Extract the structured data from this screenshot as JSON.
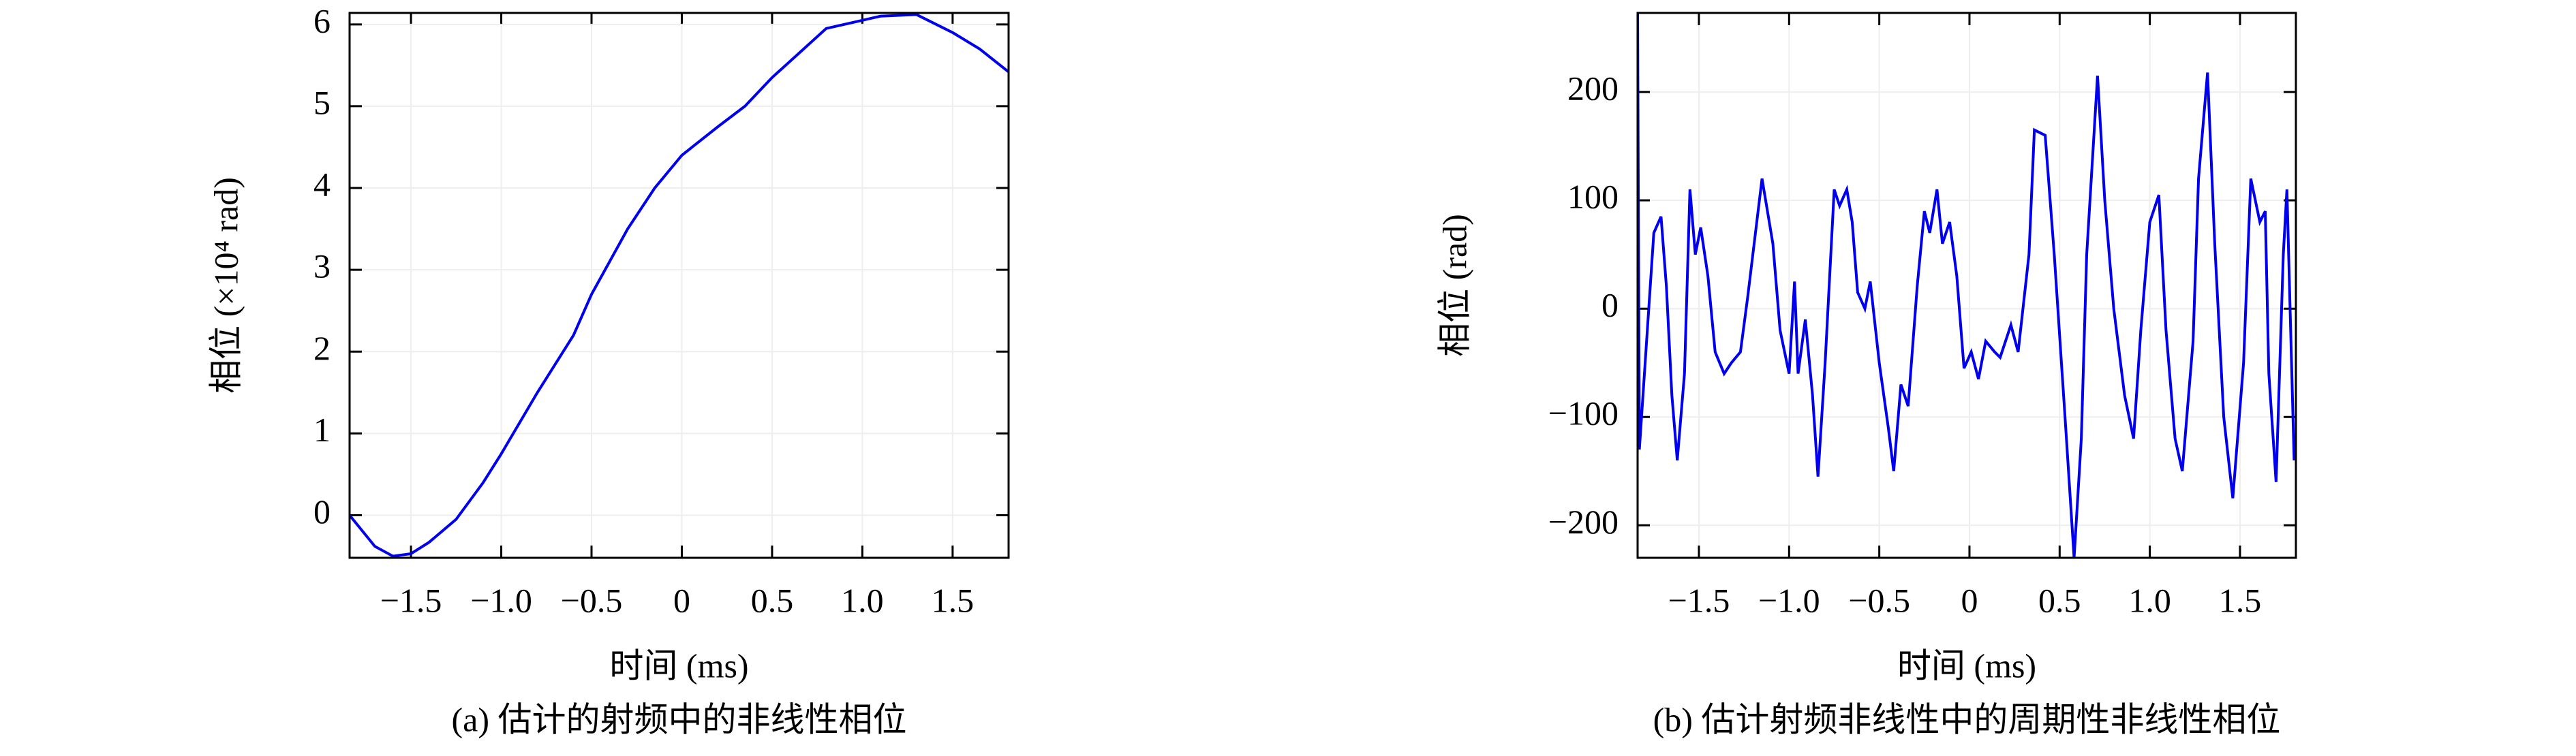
{
  "chart_data": [
    {
      "type": "line",
      "caption": "(a) 估计的射频中的非线性相位",
      "xlabel": "时间 (ms)",
      "ylabel": "相位 (×10⁴ rad)",
      "xlim": [
        -1.84,
        1.81
      ],
      "ylim": [
        -0.52,
        6.14
      ],
      "xticks": [
        {
          "value": -1.5,
          "label": "−1.5"
        },
        {
          "value": -1,
          "label": "−1.0"
        },
        {
          "value": -0.5,
          "label": "−0.5"
        },
        0,
        0.5,
        {
          "value": 1,
          "label": "1.0"
        },
        1.5
      ],
      "yticks": [
        0,
        1,
        2,
        3,
        4,
        5,
        6
      ],
      "grid": true,
      "series": [
        {
          "color": "#0000ee",
          "x": [
            -1.84,
            -1.7,
            -1.6,
            -1.5,
            -1.4,
            -1.25,
            -1.1,
            -1.0,
            -0.8,
            -0.6,
            -0.5,
            -0.3,
            -0.15,
            0,
            0.2,
            0.35,
            0.5,
            0.65,
            0.8,
            1.0,
            1.1,
            1.3,
            1.5,
            1.65,
            1.81
          ],
          "values": [
            0,
            -0.38,
            -0.5,
            -0.47,
            -0.33,
            -0.05,
            0.4,
            0.75,
            1.5,
            2.2,
            2.7,
            3.5,
            4.0,
            4.4,
            4.75,
            5.0,
            5.35,
            5.65,
            5.95,
            6.05,
            6.1,
            6.12,
            5.9,
            5.7,
            5.42
          ]
        }
      ]
    },
    {
      "type": "line",
      "caption": "(b) 估计射频非线性中的周期性非线性相位",
      "xlabel": "时间 (ms)",
      "ylabel": "相位 (rad)",
      "xlim": [
        -1.84,
        1.81
      ],
      "ylim": [
        -230,
        273
      ],
      "xticks": [
        {
          "value": -1.5,
          "label": "−1.5"
        },
        {
          "value": -1,
          "label": "−1.0"
        },
        {
          "value": -0.5,
          "label": "−0.5"
        },
        0,
        0.5,
        {
          "value": 1,
          "label": "1.0"
        },
        1.5
      ],
      "yticks": [
        {
          "value": -200,
          "label": "−200"
        },
        {
          "value": -100,
          "label": "−100"
        },
        0,
        100,
        200
      ],
      "grid": true,
      "series": [
        {
          "color": "#0000ee",
          "x": [
            -1.84,
            -1.83,
            -1.79,
            -1.75,
            -1.71,
            -1.68,
            -1.65,
            -1.62,
            -1.58,
            -1.55,
            -1.52,
            -1.49,
            -1.45,
            -1.41,
            -1.36,
            -1.32,
            -1.27,
            -1.23,
            -1.15,
            -1.09,
            -1.05,
            -1.0,
            -0.97,
            -0.95,
            -0.91,
            -0.87,
            -0.84,
            -0.8,
            -0.75,
            -0.72,
            -0.68,
            -0.65,
            -0.62,
            -0.58,
            -0.55,
            -0.5,
            -0.45,
            -0.42,
            -0.38,
            -0.34,
            -0.29,
            -0.25,
            -0.22,
            -0.18,
            -0.15,
            -0.11,
            -0.07,
            -0.03,
            0.01,
            0.05,
            0.09,
            0.14,
            0.17,
            0.23,
            0.27,
            0.33,
            0.36,
            0.42,
            0.47,
            0.53,
            0.58,
            0.62,
            0.65,
            0.71,
            0.75,
            0.8,
            0.86,
            0.91,
            0.95,
            1.0,
            1.05,
            1.09,
            1.14,
            1.18,
            1.24,
            1.27,
            1.32,
            1.36,
            1.41,
            1.46,
            1.52,
            1.56,
            1.61,
            1.64,
            1.66,
            1.7,
            1.74,
            1.76,
            1.8
          ],
          "values": [
            273,
            -130,
            -30,
            70,
            85,
            20,
            -80,
            -140,
            -60,
            110,
            50,
            75,
            30,
            -40,
            -60,
            -50,
            -40,
            10,
            120,
            60,
            -20,
            -60,
            25,
            -60,
            -10,
            -80,
            -155,
            -50,
            110,
            95,
            110,
            80,
            15,
            0,
            25,
            -50,
            -110,
            -150,
            -70,
            -90,
            20,
            90,
            70,
            110,
            60,
            80,
            30,
            -55,
            -40,
            -65,
            -30,
            -40,
            -45,
            -15,
            -40,
            50,
            165,
            160,
            50,
            -100,
            -230,
            -120,
            50,
            215,
            100,
            0,
            -80,
            -120,
            -20,
            80,
            105,
            -20,
            -120,
            -150,
            -30,
            120,
            218,
            60,
            -100,
            -175,
            -50,
            120,
            80,
            90,
            -60,
            -160,
            50,
            110,
            -140
          ]
        }
      ]
    }
  ]
}
